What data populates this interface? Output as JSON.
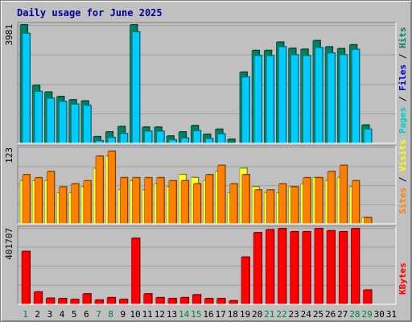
{
  "title": "Daily usage for June 2025",
  "chart_data": {
    "type": "bar",
    "title": "Daily usage for June 2025",
    "categories": [
      1,
      2,
      3,
      4,
      5,
      6,
      7,
      8,
      9,
      10,
      11,
      12,
      13,
      14,
      15,
      16,
      17,
      18,
      19,
      20,
      21,
      22,
      23,
      24,
      25,
      26,
      27,
      28,
      29,
      30,
      31
    ],
    "weekend_days": [
      1,
      7,
      8,
      14,
      15,
      21,
      22,
      28,
      29
    ],
    "panels": [
      {
        "id": "hits-files-pages",
        "ymax_label": "3981",
        "ymax": 3981,
        "grid": true,
        "legend": [
          "Pages",
          "Files",
          "Hits"
        ],
        "legend_colors": [
          "#00cccc",
          "#0000cc",
          "#008060"
        ],
        "series": [
          {
            "name": "Hits",
            "color": "#008060",
            "values": [
              3981,
              1940,
              1720,
              1570,
              1460,
              1420,
              220,
              380,
              560,
              3981,
              540,
              540,
              240,
              380,
              590,
              300,
              470,
              130,
              2390,
              3120,
              3120,
              3400,
              3190,
              3160,
              3450,
              3240,
              3180,
              3310,
              610,
              null,
              null
            ]
          },
          {
            "name": "Files",
            "color": "#00ccff",
            "values": [
              3800,
              1850,
              1620,
              1510,
              1420,
              1380,
              190,
              300,
              430,
              3850,
              510,
              510,
              220,
              280,
              530,
              260,
              420,
              100,
              2330,
              3050,
              3050,
              3350,
              3080,
              3050,
              3320,
              3140,
              3080,
              3260,
              580,
              null,
              null
            ]
          }
        ]
      },
      {
        "id": "visits-sites",
        "ymax_label": "123",
        "ymax": 123,
        "grid": true,
        "legend": [
          "Sites",
          "Visits"
        ],
        "legend_colors": [
          "#ff8000",
          "#ffff00"
        ],
        "series": [
          {
            "name": "Visits",
            "color": "#ffff33",
            "values": [
              70,
              70,
              70,
              50,
              50,
              60,
              90,
              110,
              55,
              70,
              55,
              65,
              60,
              80,
              75,
              70,
              85,
              50,
              90,
              60,
              50,
              50,
              60,
              65,
              75,
              70,
              75,
              60,
              10,
              null,
              null
            ]
          },
          {
            "name": "Sites",
            "color": "#ff8000",
            "values": [
              85,
              80,
              90,
              65,
              70,
              75,
              115,
              123,
              80,
              80,
              80,
              80,
              75,
              75,
              70,
              85,
              100,
              70,
              85,
              60,
              60,
              70,
              65,
              80,
              80,
              90,
              100,
              75,
              15,
              null,
              null
            ]
          }
        ]
      },
      {
        "id": "kbytes",
        "ymax_label": "401707",
        "ymax": 401707,
        "grid": true,
        "legend": [
          "KBytes"
        ],
        "legend_colors": [
          "#ff0000"
        ],
        "series": [
          {
            "name": "KBytes",
            "color": "#ff0000",
            "values": [
              280000,
              65000,
              32000,
              30000,
              25000,
              55000,
              22000,
              35000,
              25000,
              350000,
              55000,
              35000,
              30000,
              35000,
              50000,
              30000,
              30000,
              18000,
              250000,
              380000,
              395000,
              401707,
              385000,
              385000,
              401707,
              390000,
              385000,
              401707,
              75000,
              null,
              null
            ]
          }
        ]
      }
    ]
  }
}
